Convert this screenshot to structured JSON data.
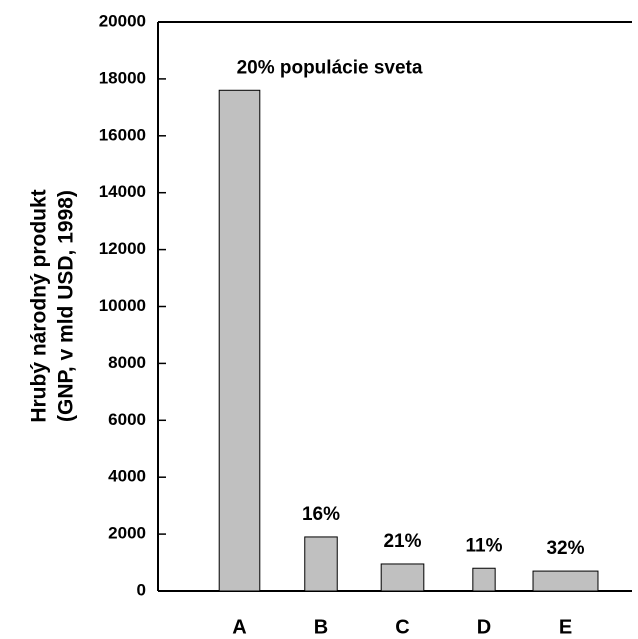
{
  "chart_data": {
    "type": "bar",
    "ylabel": [
      "Hrubý národný produkt",
      "(GNP, v mld USD, 1998)"
    ],
    "categories": [
      "A",
      "B",
      "C",
      "D",
      "E"
    ],
    "values": [
      17600,
      1900,
      950,
      800,
      700
    ],
    "widths": [
      20,
      16,
      21,
      11,
      32
    ],
    "width_labels": [
      "20% populácie sveta",
      "16%",
      "21%",
      "11%",
      "32%"
    ],
    "color": "#c0c0c0",
    "ylim": [
      0,
      20000
    ],
    "yticks": [
      0,
      2000,
      4000,
      6000,
      8000,
      10000,
      12000,
      14000,
      16000,
      18000,
      20000
    ]
  }
}
